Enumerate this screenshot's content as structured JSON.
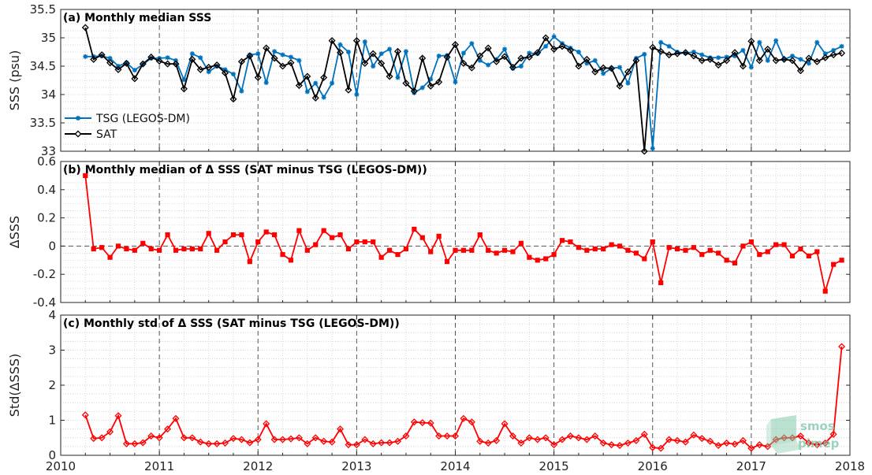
{
  "chart_data": [
    {
      "type": "line",
      "title": "(a) Monthly median SSS",
      "ylabel": "SSS (psu)",
      "xlabel": "",
      "xlim": [
        2010,
        2018
      ],
      "ylim": [
        33,
        35.5
      ],
      "yticks": [
        "33",
        "33.5",
        "34",
        "34.5",
        "35",
        "35.5"
      ],
      "grid": true,
      "legend": "bottom-left",
      "x_start": "2010-04",
      "series": [
        {
          "name": "TSG (LEGOS-DM)",
          "color": "#0072BD",
          "marker": "asterisk",
          "values": [
            34.67,
            34.67,
            34.68,
            34.64,
            34.5,
            34.56,
            34.43,
            34.53,
            34.64,
            34.64,
            34.65,
            34.6,
            34.26,
            34.72,
            34.65,
            34.4,
            34.5,
            34.44,
            34.36,
            34.06,
            34.7,
            34.72,
            34.21,
            34.76,
            34.7,
            34.66,
            34.6,
            34.05,
            34.2,
            33.95,
            34.2,
            34.88,
            34.75,
            34.0,
            34.93,
            34.5,
            34.72,
            34.8,
            34.3,
            34.76,
            34.03,
            34.12,
            34.27,
            34.68,
            34.69,
            34.22,
            34.73,
            34.9,
            34.6,
            34.52,
            34.62,
            34.8,
            34.46,
            34.5,
            34.73,
            34.72,
            34.85,
            35.02,
            34.9,
            34.82,
            34.75,
            34.55,
            34.6,
            34.37,
            34.46,
            34.48,
            34.2,
            34.64,
            34.71,
            33.05,
            34.92,
            34.85,
            34.75,
            34.73,
            34.75,
            34.7,
            34.65,
            34.65,
            34.66,
            34.68,
            34.78,
            34.48,
            34.92,
            34.6,
            34.95,
            34.62,
            34.68,
            34.62,
            34.55,
            34.92,
            34.72,
            34.78,
            34.85
          ]
        },
        {
          "name": "SAT",
          "color": "#000000",
          "marker": "diamond",
          "values": [
            35.18,
            34.62,
            34.7,
            34.56,
            34.44,
            34.55,
            34.28,
            34.54,
            34.66,
            34.59,
            34.54,
            34.54,
            34.1,
            34.62,
            34.44,
            34.48,
            34.52,
            34.38,
            33.92,
            34.58,
            34.68,
            34.3,
            34.82,
            34.64,
            34.5,
            34.56,
            34.16,
            34.32,
            33.94,
            34.3,
            34.95,
            34.74,
            34.08,
            34.95,
            34.55,
            34.72,
            34.55,
            34.32,
            34.76,
            34.2,
            34.06,
            34.64,
            34.15,
            34.22,
            34.66,
            34.88,
            34.55,
            34.47,
            34.68,
            34.82,
            34.58,
            34.67,
            34.48,
            34.64,
            34.66,
            34.74,
            35.0,
            34.8,
            34.85,
            34.78,
            34.5,
            34.62,
            34.4,
            34.47,
            34.46,
            34.15,
            34.4,
            34.6,
            33.0,
            34.83,
            34.76,
            34.7,
            34.72,
            34.74,
            34.68,
            34.6,
            34.62,
            34.52,
            34.6,
            34.74,
            34.5,
            34.94,
            34.6,
            34.8,
            34.6,
            34.62,
            34.6,
            34.42,
            34.64,
            34.58,
            34.65,
            34.7,
            34.73
          ]
        }
      ]
    },
    {
      "type": "line",
      "title": "(b) Monthly median of Δ SSS (SAT minus TSG (LEGOS-DM))",
      "ylabel": "ΔSSS",
      "xlabel": "",
      "xlim": [
        2010,
        2018
      ],
      "ylim": [
        -0.4,
        0.6
      ],
      "yticks": [
        "-0.4",
        "-0.2",
        "0",
        "0.2",
        "0.4",
        "0.6"
      ],
      "grid": true,
      "zero_line": true,
      "x_start": "2010-04",
      "series": [
        {
          "name": "",
          "color": "#FF0000",
          "marker": "square",
          "values": [
            0.5,
            -0.02,
            -0.01,
            -0.08,
            0.0,
            -0.02,
            -0.03,
            0.02,
            -0.02,
            -0.03,
            0.08,
            -0.03,
            -0.02,
            -0.02,
            -0.02,
            0.09,
            -0.03,
            0.03,
            0.08,
            0.08,
            -0.11,
            0.03,
            0.1,
            0.08,
            -0.06,
            -0.1,
            0.11,
            -0.03,
            0.01,
            0.11,
            0.06,
            0.08,
            -0.02,
            0.03,
            0.03,
            0.03,
            -0.08,
            -0.03,
            -0.06,
            -0.02,
            0.12,
            0.06,
            -0.04,
            0.07,
            -0.11,
            -0.03,
            -0.03,
            -0.03,
            0.08,
            -0.03,
            -0.05,
            -0.03,
            -0.04,
            0.02,
            -0.08,
            -0.1,
            -0.09,
            -0.06,
            0.04,
            0.03,
            -0.01,
            -0.03,
            -0.02,
            -0.02,
            0.01,
            0.0,
            -0.03,
            -0.05,
            -0.09,
            0.03,
            -0.26,
            -0.01,
            -0.02,
            -0.03,
            -0.01,
            -0.06,
            -0.03,
            -0.05,
            -0.1,
            -0.12,
            0.0,
            0.03,
            -0.06,
            -0.04,
            0.01,
            0.01,
            -0.07,
            -0.02,
            -0.07,
            -0.04,
            -0.32,
            -0.13,
            -0.1
          ]
        }
      ]
    },
    {
      "type": "line",
      "title": "(c) Monthly std of Δ SSS (SAT minus TSG (LEGOS-DM))",
      "ylabel": "Std(ΔSSS)",
      "xlabel": "",
      "xlim": [
        2010,
        2018
      ],
      "ylim": [
        0,
        4
      ],
      "yticks": [
        "0",
        "1",
        "2",
        "3",
        "4"
      ],
      "xticks": [
        "2010",
        "2011",
        "2012",
        "2013",
        "2014",
        "2015",
        "2016",
        "2017",
        "2018"
      ],
      "grid": true,
      "x_start": "2010-04",
      "series": [
        {
          "name": "",
          "color": "#FF0000",
          "marker": "diamond",
          "values": [
            1.15,
            0.48,
            0.5,
            0.67,
            1.13,
            0.33,
            0.33,
            0.36,
            0.55,
            0.5,
            0.75,
            1.05,
            0.5,
            0.5,
            0.38,
            0.33,
            0.33,
            0.35,
            0.48,
            0.45,
            0.36,
            0.45,
            0.9,
            0.45,
            0.45,
            0.47,
            0.5,
            0.33,
            0.5,
            0.4,
            0.38,
            0.75,
            0.3,
            0.3,
            0.45,
            0.33,
            0.36,
            0.36,
            0.4,
            0.55,
            0.95,
            0.93,
            0.92,
            0.55,
            0.55,
            0.55,
            1.05,
            0.95,
            0.4,
            0.35,
            0.42,
            0.9,
            0.55,
            0.35,
            0.5,
            0.45,
            0.5,
            0.3,
            0.45,
            0.55,
            0.5,
            0.45,
            0.55,
            0.35,
            0.3,
            0.28,
            0.35,
            0.42,
            0.6,
            0.22,
            0.2,
            0.45,
            0.42,
            0.38,
            0.58,
            0.48,
            0.4,
            0.28,
            0.35,
            0.32,
            0.42,
            0.2,
            0.3,
            0.25,
            0.45,
            0.5,
            0.5,
            0.55,
            0.35,
            0.3,
            0.35,
            0.6,
            3.1
          ]
        }
      ]
    }
  ],
  "watermark": {
    "line1": "smos",
    "line2": "pimep",
    "color": "#7dc4a6"
  }
}
